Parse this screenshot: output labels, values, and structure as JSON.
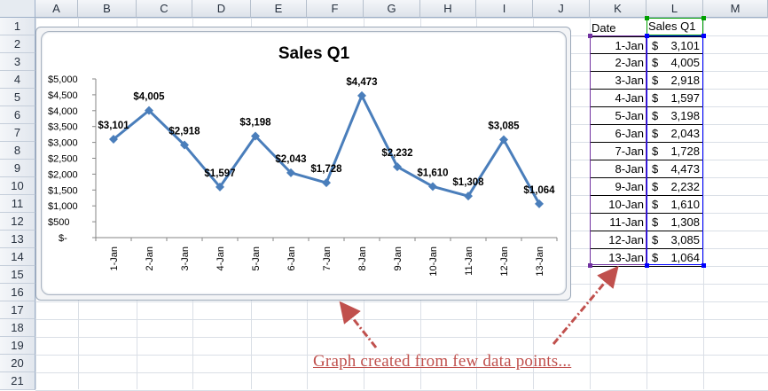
{
  "spreadsheet": {
    "columns": [
      "A",
      "B",
      "C",
      "D",
      "E",
      "F",
      "G",
      "H",
      "I",
      "J",
      "K",
      "L",
      "M"
    ],
    "rows": [
      "1",
      "2",
      "3",
      "4",
      "5",
      "6",
      "7",
      "8",
      "9",
      "10",
      "11",
      "12",
      "13",
      "14",
      "15",
      "16",
      "17",
      "18",
      "19",
      "20",
      "21"
    ],
    "table": {
      "header_date": "Date",
      "header_sales": "Sales Q1",
      "currency_symbol": "$",
      "rows": [
        {
          "date": "1-Jan",
          "value": "3,101"
        },
        {
          "date": "2-Jan",
          "value": "4,005"
        },
        {
          "date": "3-Jan",
          "value": "2,918"
        },
        {
          "date": "4-Jan",
          "value": "1,597"
        },
        {
          "date": "5-Jan",
          "value": "3,198"
        },
        {
          "date": "6-Jan",
          "value": "2,043"
        },
        {
          "date": "7-Jan",
          "value": "1,728"
        },
        {
          "date": "8-Jan",
          "value": "4,473"
        },
        {
          "date": "9-Jan",
          "value": "2,232"
        },
        {
          "date": "10-Jan",
          "value": "1,610"
        },
        {
          "date": "11-Jan",
          "value": "1,308"
        },
        {
          "date": "12-Jan",
          "value": "3,085"
        },
        {
          "date": "13-Jan",
          "value": "1,064"
        }
      ]
    }
  },
  "annotation": {
    "caption": "Graph created from few data points..."
  },
  "colors": {
    "line": "#4a7ebb",
    "annotation": "#c0504d",
    "grid": "#dadfe6",
    "selection_purple": "#7030a0",
    "selection_blue": "#0000ff",
    "selection_green": "#00a000"
  },
  "chart_data": {
    "type": "line",
    "title": "Sales Q1",
    "xlabel": "",
    "ylabel": "",
    "categories": [
      "1-Jan",
      "2-Jan",
      "3-Jan",
      "4-Jan",
      "5-Jan",
      "6-Jan",
      "7-Jan",
      "8-Jan",
      "9-Jan",
      "10-Jan",
      "11-Jan",
      "12-Jan",
      "13-Jan"
    ],
    "series": [
      {
        "name": "Sales Q1",
        "values": [
          3101,
          4005,
          2918,
          1597,
          3198,
          2043,
          1728,
          4473,
          2232,
          1610,
          1308,
          3085,
          1064
        ]
      }
    ],
    "data_labels": [
      "$3,101",
      "$4,005",
      "$2,918",
      "$1,597",
      "$3,198",
      "$2,043",
      "$1,728",
      "$4,473",
      "$2,232",
      "$1,610",
      "$1,308",
      "$3,085",
      "$1,064"
    ],
    "y_ticks": [
      "$-",
      "$500",
      "$1,000",
      "$1,500",
      "$2,000",
      "$2,500",
      "$3,000",
      "$3,500",
      "$4,000",
      "$4,500",
      "$5,000"
    ],
    "ylim": [
      0,
      5000
    ],
    "grid": false,
    "legend": "none",
    "marker": "diamond"
  }
}
